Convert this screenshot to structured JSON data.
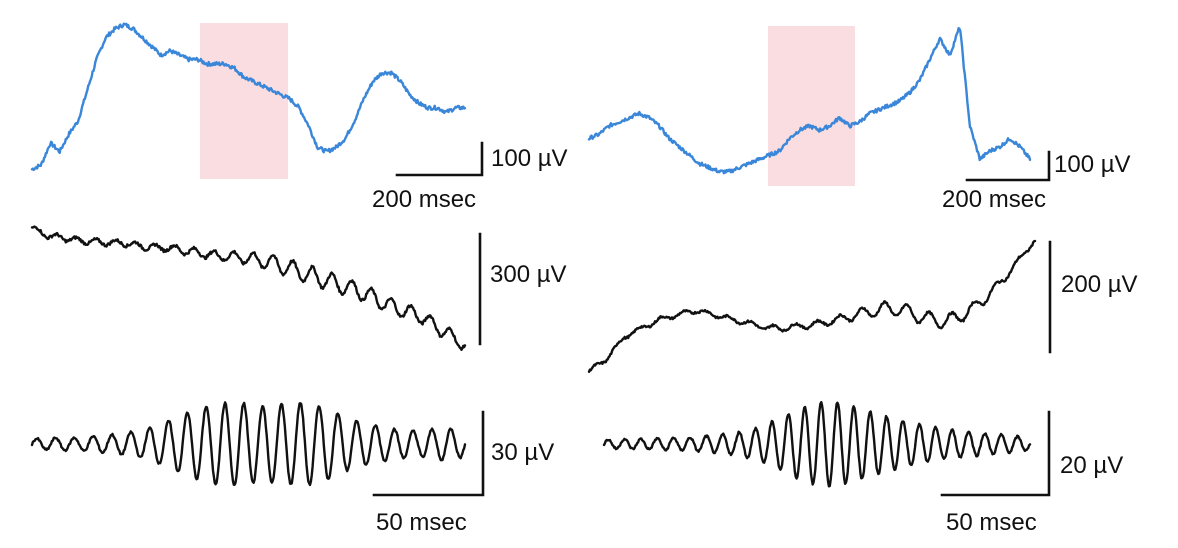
{
  "colors": {
    "raw_trace": "#3a86d8",
    "filtered_trace": "#111111",
    "highlight": "#f9dde1",
    "scale_bar": "#111111"
  },
  "chart_data": [
    {
      "type": "line",
      "panel": "left-top-raw",
      "highlight_window": true,
      "scale": {
        "amplitude_label": "100 µV",
        "time_label": "200 msec"
      },
      "series": [
        {
          "color": "#3a86d8",
          "values": [
            -0.6,
            -0.5,
            0.0,
            -0.2,
            0.2,
            0.5,
            1.2,
            1.9,
            2.4,
            2.6,
            2.7,
            2.6,
            2.4,
            2.2,
            2.0,
            2.1,
            2.0,
            1.9,
            1.9,
            1.8,
            1.8,
            1.8,
            1.7,
            1.5,
            1.4,
            1.3,
            1.2,
            1.1,
            1.0,
            0.8,
            0.4,
            -0.1,
            -0.2,
            -0.1,
            0.1,
            0.5,
            1.0,
            1.4,
            1.6,
            1.6,
            1.4,
            1.1,
            0.9,
            0.8,
            0.8,
            0.7,
            0.8,
            0.8
          ]
        }
      ]
    },
    {
      "type": "line",
      "panel": "right-top-raw",
      "highlight_window": true,
      "scale": {
        "amplitude_label": "100 µV",
        "time_label": "200 msec"
      },
      "series": [
        {
          "color": "#3a86d8",
          "values": [
            0.2,
            0.3,
            0.5,
            0.6,
            0.7,
            0.8,
            0.7,
            0.5,
            0.2,
            0.0,
            -0.2,
            -0.4,
            -0.5,
            -0.6,
            -0.6,
            -0.5,
            -0.4,
            -0.3,
            -0.2,
            -0.1,
            0.2,
            0.4,
            0.5,
            0.4,
            0.5,
            0.7,
            0.5,
            0.6,
            0.8,
            0.9,
            1.0,
            1.1,
            1.3,
            1.6,
            2.1,
            2.6,
            2.2,
            2.9,
            0.5,
            -0.3,
            -0.1,
            0.0,
            0.2,
            0.0,
            -0.3
          ]
        }
      ]
    },
    {
      "type": "line",
      "panel": "left-middle-filtered",
      "scale": {
        "amplitude_label": "300 µV"
      },
      "series": [
        {
          "color": "#111111",
          "values": [
            2.0,
            1.85,
            1.8,
            1.75,
            1.72,
            1.7,
            1.7,
            1.65,
            1.6,
            1.6,
            1.55,
            1.5,
            1.45,
            1.42,
            1.4,
            1.35,
            1.3,
            1.2,
            1.1,
            1.0,
            0.9,
            0.8,
            0.7,
            0.55,
            0.4,
            0.3,
            0.2,
            0.0,
            -0.2,
            -0.4
          ]
        }
      ]
    },
    {
      "type": "line",
      "panel": "right-middle-filtered",
      "scale": {
        "amplitude_label": "200 µV"
      },
      "series": [
        {
          "color": "#111111",
          "values": [
            -1.2,
            -0.9,
            -0.4,
            -0.2,
            0.0,
            0.1,
            0.2,
            0.1,
            0.0,
            -0.1,
            -0.2,
            -0.2,
            -0.15,
            -0.1,
            0.0,
            0.1,
            0.2,
            0.25,
            0.15,
            0.0,
            -0.05,
            0.1,
            0.4,
            0.8,
            1.3,
            1.8
          ]
        }
      ]
    },
    {
      "type": "line",
      "panel": "left-bottom-oscillation",
      "scale": {
        "amplitude_label": "30 µV",
        "time_label": "50 msec"
      },
      "series": [
        {
          "color": "#111111",
          "cycles": 23,
          "envelope": [
            0.12,
            0.15,
            0.15,
            0.2,
            0.25,
            0.35,
            0.55,
            0.8,
            0.95,
            1.0,
            0.9,
            0.95,
            1.0,
            0.85,
            0.6,
            0.45,
            0.35,
            0.3,
            0.4,
            0.3
          ]
        }
      ]
    },
    {
      "type": "line",
      "panel": "right-bottom-oscillation",
      "scale": {
        "amplitude_label": "20 µV",
        "time_label": "50 msec"
      },
      "series": [
        {
          "color": "#111111",
          "cycles": 26,
          "envelope": [
            0.1,
            0.12,
            0.12,
            0.15,
            0.15,
            0.2,
            0.25,
            0.35,
            0.55,
            0.8,
            1.0,
            1.0,
            0.85,
            0.7,
            0.55,
            0.45,
            0.35,
            0.3,
            0.25,
            0.2,
            0.15
          ]
        }
      ]
    }
  ]
}
